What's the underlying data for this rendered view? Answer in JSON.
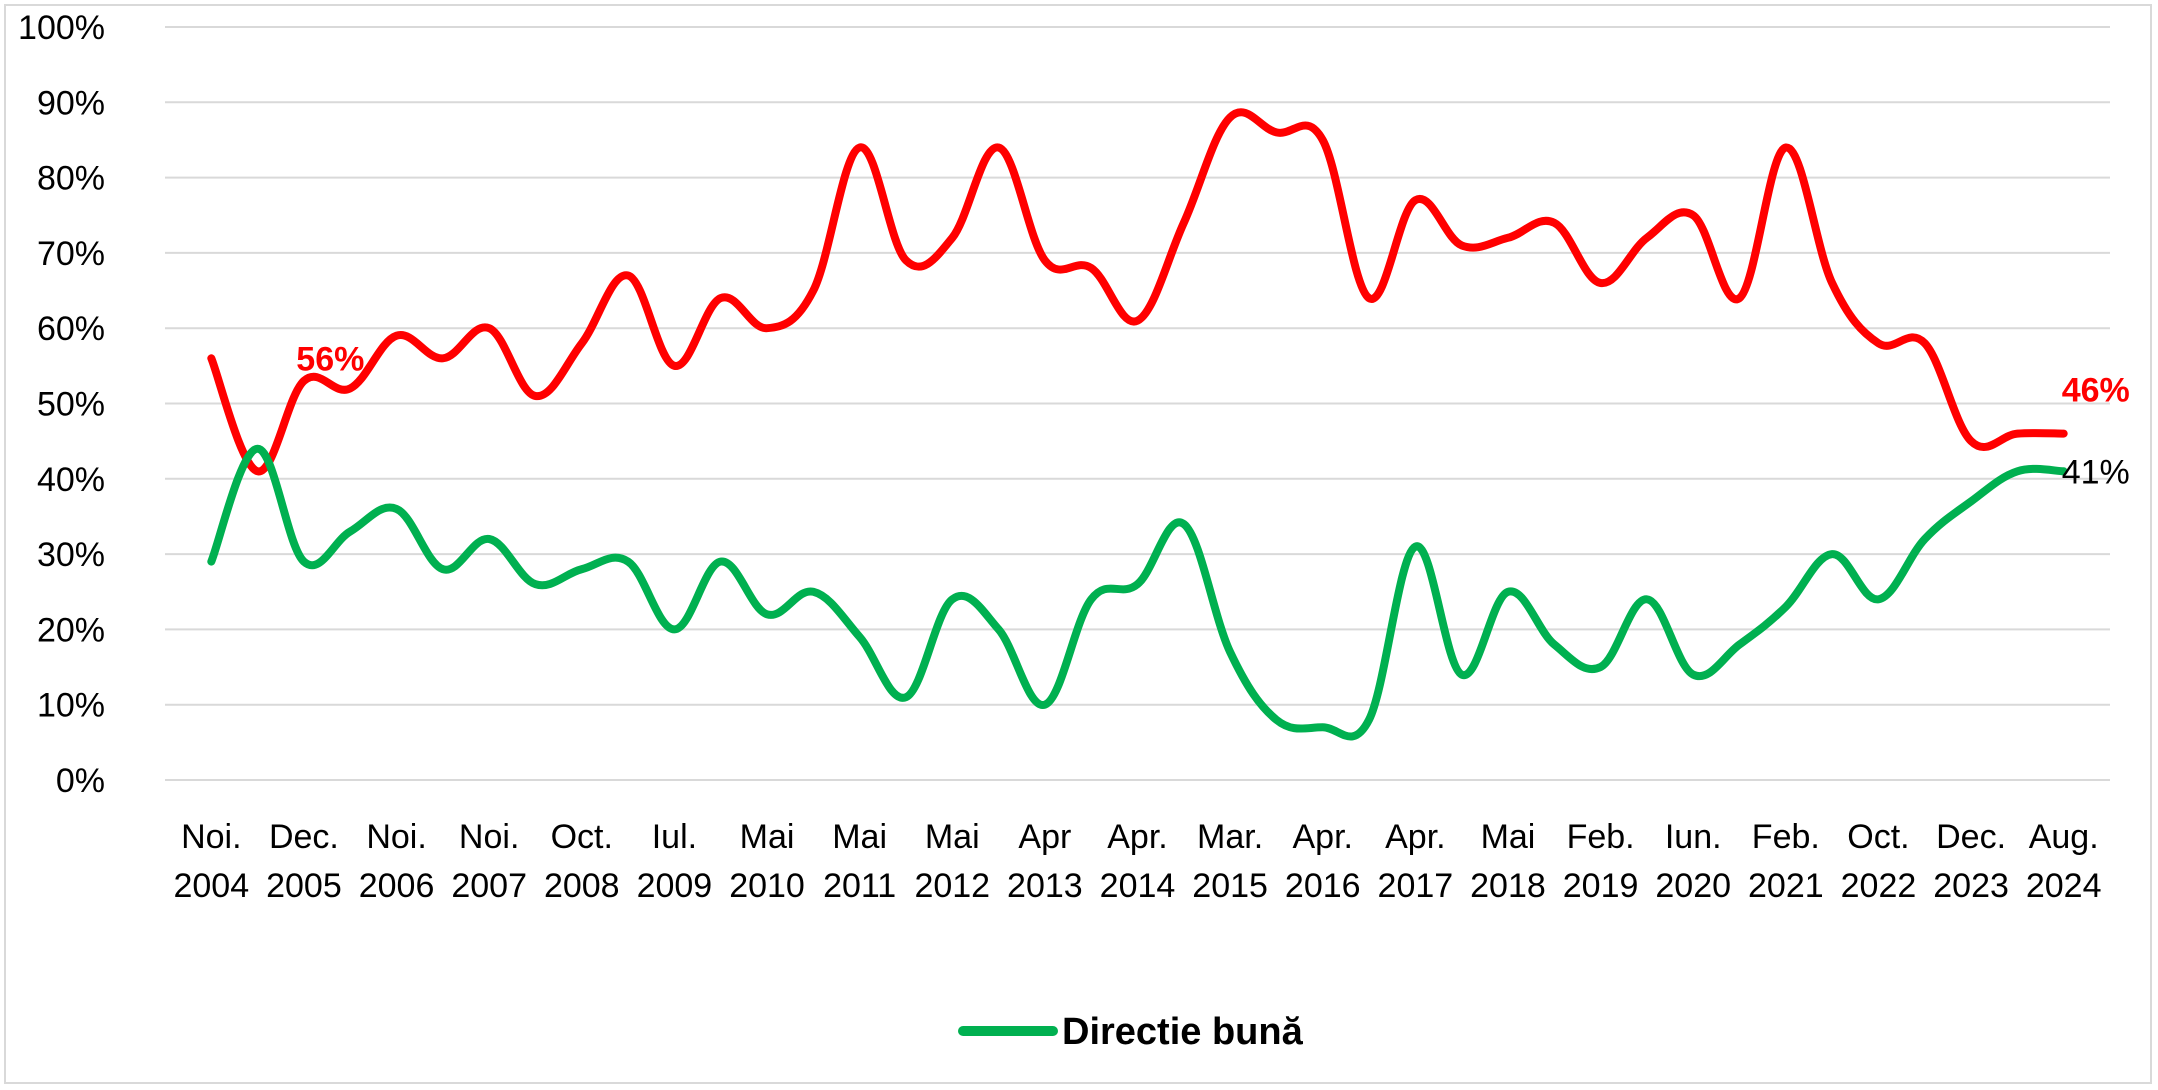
{
  "chart_data": {
    "type": "line",
    "y_ticks": [
      "0%",
      "10%",
      "20%",
      "30%",
      "40%",
      "50%",
      "60%",
      "70%",
      "80%",
      "90%",
      "100%"
    ],
    "ylim": [
      0,
      100
    ],
    "grid": true,
    "legend_placement": "bottom-center",
    "categories": [
      [
        "Noi.",
        "2004"
      ],
      [
        "Dec.",
        "2005"
      ],
      [
        "Noi.",
        "2006"
      ],
      [
        "Noi.",
        "2007"
      ],
      [
        "Oct.",
        "2008"
      ],
      [
        "Iul.",
        "2009"
      ],
      [
        "Mai",
        "2010"
      ],
      [
        "Mai",
        "2011"
      ],
      [
        "Mai",
        "2012"
      ],
      [
        "Apr",
        "2013"
      ],
      [
        "Apr.",
        "2014"
      ],
      [
        "Mar.",
        "2015"
      ],
      [
        "Apr.",
        "2016"
      ],
      [
        "Apr.",
        "2017"
      ],
      [
        "Mai",
        "2018"
      ],
      [
        "Feb.",
        "2019"
      ],
      [
        "Iun.",
        "2020"
      ],
      [
        "Feb.",
        "2021"
      ],
      [
        "Oct.",
        "2022"
      ],
      [
        "Dec.",
        "2023"
      ],
      [
        "Aug.",
        "2024"
      ]
    ],
    "series": [
      {
        "key": "red",
        "color": "#ff0000",
        "x": [
          0,
          0.5,
          1,
          1.5,
          2,
          2.5,
          3,
          3.5,
          4,
          4.5,
          5,
          5.5,
          6,
          6.5,
          7,
          7.5,
          8,
          8.5,
          9,
          9.5,
          10,
          10.5,
          11,
          11.5,
          12,
          12.5,
          13,
          13.5,
          14,
          14.5,
          15,
          15.5,
          16,
          16.5,
          17,
          17.5,
          18,
          18.5,
          19,
          19.5,
          20
        ],
        "values": [
          56,
          41,
          53,
          52,
          59,
          56,
          60,
          51,
          58,
          67,
          55,
          64,
          60,
          65,
          84,
          69,
          72,
          84,
          69,
          68,
          61,
          74,
          88,
          86,
          85,
          64,
          77,
          71,
          72,
          74,
          66,
          72,
          75,
          64,
          84,
          66,
          58,
          58,
          45,
          46,
          46
        ],
        "start_label": "56%",
        "end_label": "46%"
      },
      {
        "key": "green",
        "name": "Directie bună",
        "color": "#00b050",
        "x": [
          0,
          0.5,
          1,
          1.5,
          2,
          2.5,
          3,
          3.5,
          4,
          4.5,
          5,
          5.5,
          6,
          6.5,
          7,
          7.5,
          8,
          8.5,
          9,
          9.5,
          10,
          10.5,
          11,
          11.5,
          12,
          12.5,
          13,
          13.5,
          14,
          14.5,
          15,
          15.5,
          16,
          16.5,
          17,
          17.5,
          18,
          18.5,
          19,
          19.5,
          20
        ],
        "values": [
          29,
          44,
          29,
          33,
          36,
          28,
          32,
          26,
          28,
          29,
          20,
          29,
          22,
          25,
          19,
          11,
          24,
          20,
          10,
          24,
          26,
          34,
          17,
          8,
          7,
          8,
          31,
          14,
          25,
          18,
          15,
          24,
          14,
          18,
          23,
          30,
          24,
          32,
          37,
          41,
          41
        ],
        "end_label": "41%"
      }
    ]
  }
}
